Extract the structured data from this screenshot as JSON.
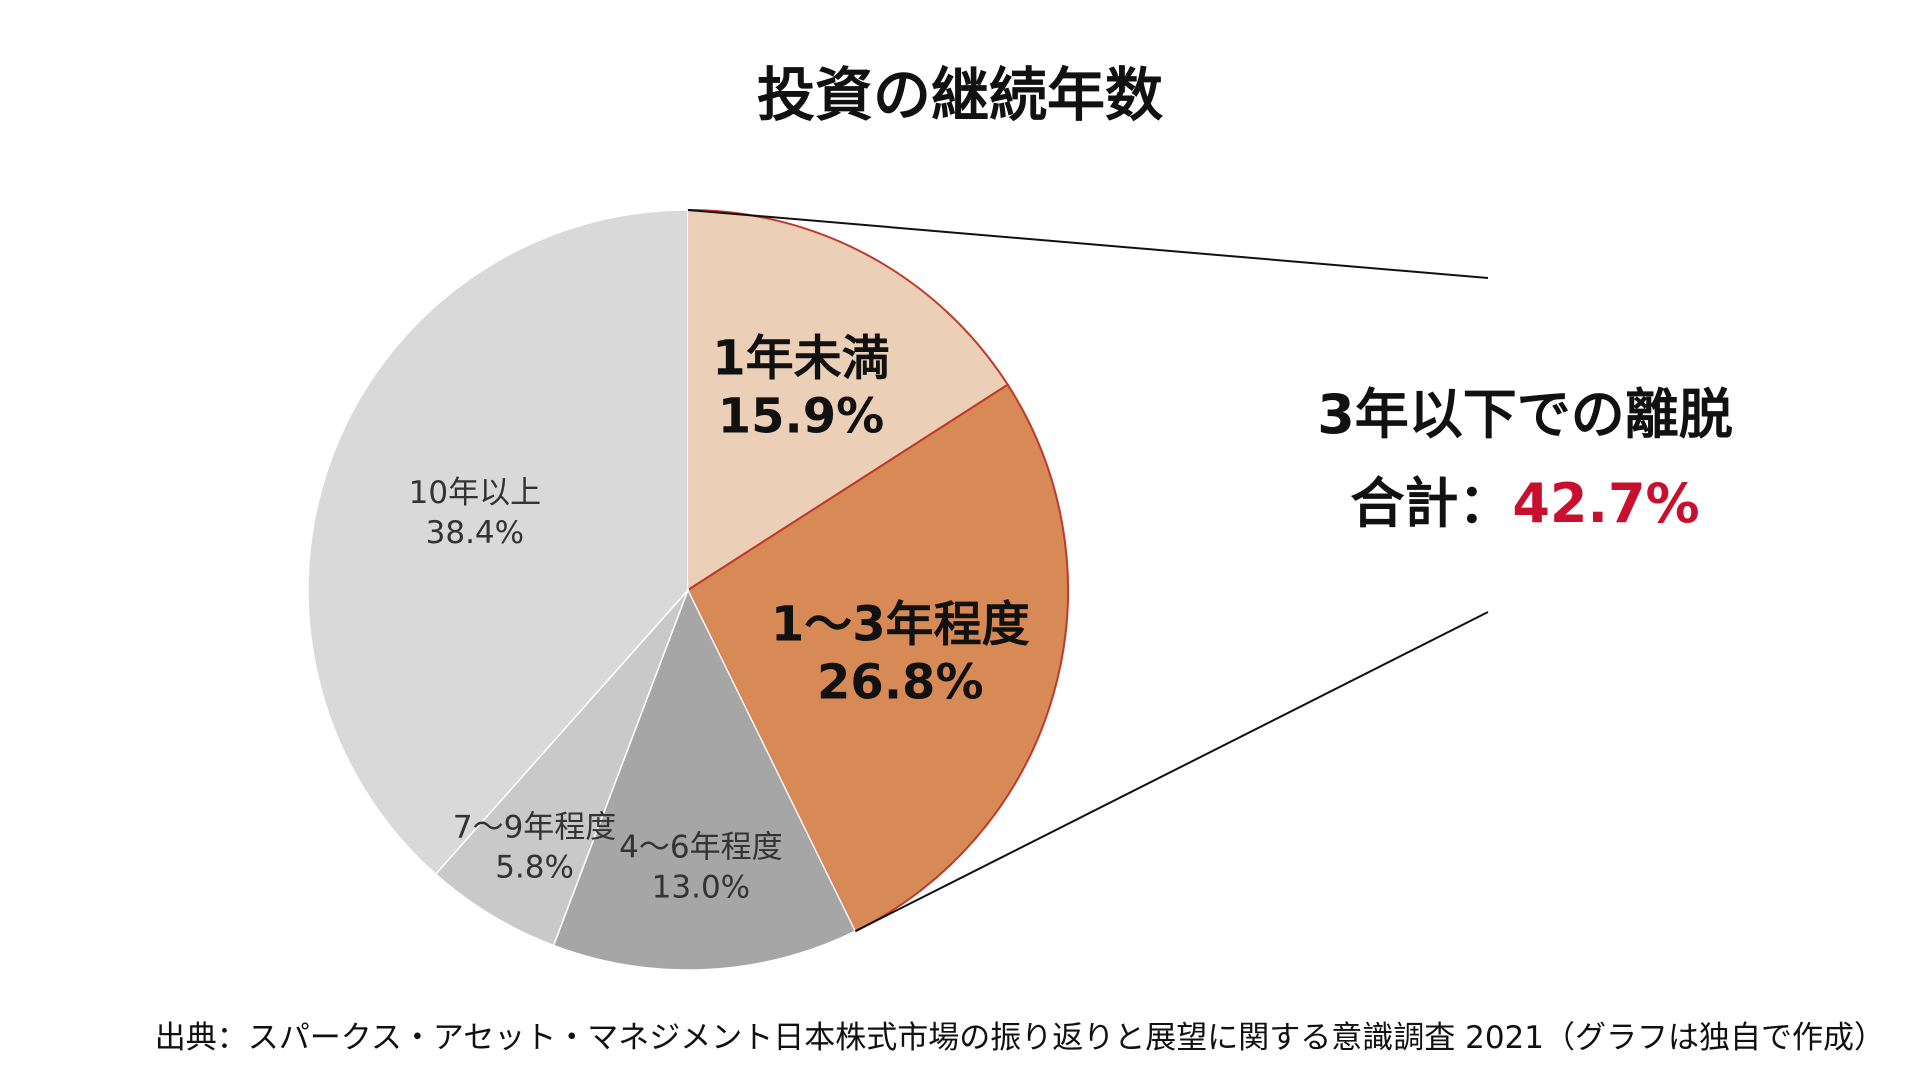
{
  "title": "投資の継続年数",
  "chart_data": {
    "type": "pie",
    "title": "投資の継続年数",
    "start": "12 o'clock, clockwise",
    "slices": [
      {
        "label": "1年未満",
        "value_text": "15.9%",
        "value": 15.9,
        "color": "#ebcfb6",
        "stroke": "#c0392b",
        "emphasis": true
      },
      {
        "label": "1〜3年程度",
        "value_text": "26.8%",
        "value": 26.8,
        "color": "#d78a55",
        "stroke": "#c0392b",
        "emphasis": true
      },
      {
        "label": "4〜6年程度",
        "value_text": "13.0%",
        "value": 13.0,
        "color": "#a6a6a6",
        "stroke": "#ffffff",
        "emphasis": false
      },
      {
        "label": "7〜9年程度",
        "value_text": "5.8%",
        "value": 5.8,
        "color": "#c9c9c9",
        "stroke": "#ffffff",
        "emphasis": false
      },
      {
        "label": "10年以上",
        "value_text": "38.4%",
        "value": 38.4,
        "color": "#d9d9d9",
        "stroke": "#ffffff",
        "emphasis": false
      }
    ]
  },
  "callout": {
    "line1": "3年以下での離脱",
    "line2_prefix": "合計：",
    "line2_value": "42.7%",
    "value_color": "#c8102e"
  },
  "source": "出典：スパークス・アセット・マネジメント日本株式市場の振り返りと展望に関する意識調査 2021（グラフは独自で作成）"
}
